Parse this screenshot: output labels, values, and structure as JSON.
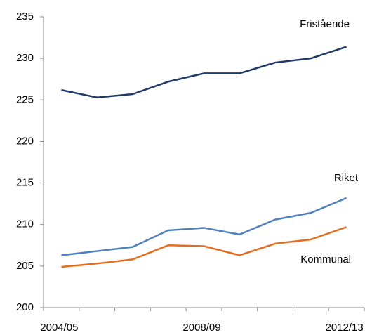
{
  "chart_data": {
    "type": "line",
    "categories": [
      "2004/05",
      null,
      null,
      null,
      "2008/09",
      null,
      null,
      null,
      "2012/13"
    ],
    "series": [
      {
        "name": "Fristående",
        "color": "#1f3a68",
        "values": [
          226.2,
          225.3,
          225.7,
          227.2,
          228.2,
          228.2,
          229.5,
          230.0,
          231.4
        ]
      },
      {
        "name": "Riket",
        "color": "#4f81bd",
        "values": [
          206.3,
          206.8,
          207.3,
          209.3,
          209.6,
          208.8,
          210.6,
          211.4,
          213.2
        ]
      },
      {
        "name": "Kommunal",
        "color": "#e46c1f",
        "values": [
          204.9,
          205.3,
          205.8,
          207.5,
          207.4,
          206.3,
          207.7,
          208.2,
          209.7
        ]
      }
    ],
    "ylim": [
      200,
      235
    ],
    "yticks": [
      200,
      205,
      210,
      215,
      220,
      225,
      230,
      235
    ],
    "grid": false
  }
}
